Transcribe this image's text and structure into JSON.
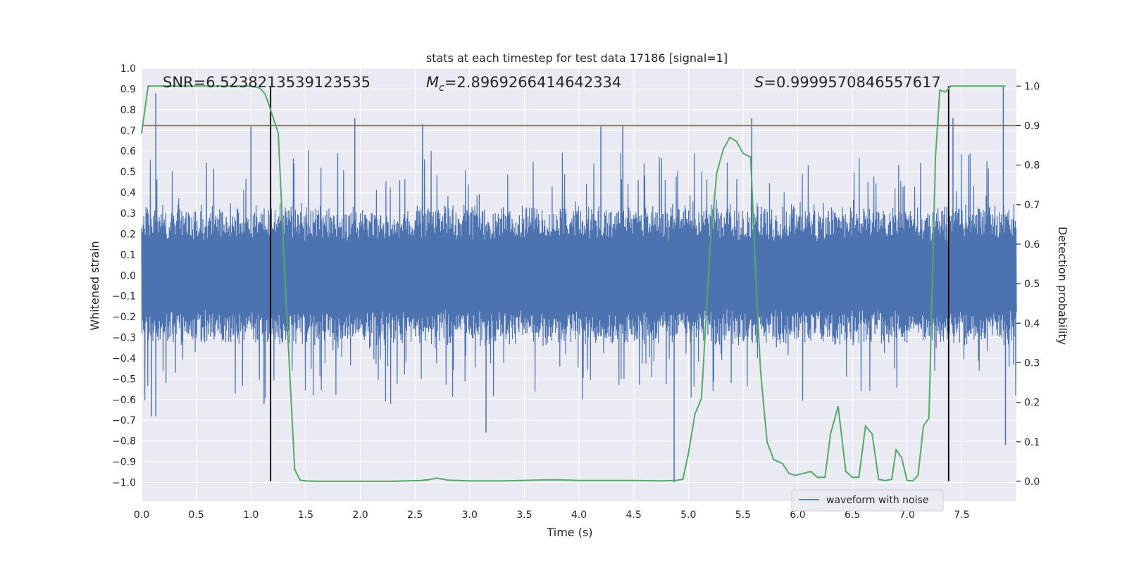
{
  "chart_data": {
    "type": "line",
    "title": "stats at each timestep for test data 17186 [signal=1]",
    "xlabel": "Time (s)",
    "ylabel_left": "Whitened strain",
    "ylabel_right": "Detection probability",
    "xlim": [
      0.0,
      8.0
    ],
    "ylim_left": [
      -1.09,
      1.0
    ],
    "ylim_right": [
      -0.05,
      1.045
    ],
    "x_ticks": [
      0.0,
      0.5,
      1.0,
      1.5,
      2.0,
      2.5,
      3.0,
      3.5,
      4.0,
      4.5,
      5.0,
      5.5,
      6.0,
      6.5,
      7.0,
      7.5
    ],
    "x_tick_labels": [
      "0.0",
      "0.5",
      "1.0",
      "1.5",
      "2.0",
      "2.5",
      "3.0",
      "3.5",
      "4.0",
      "4.5",
      "5.0",
      "5.5",
      "6.0",
      "6.5",
      "7.0",
      "7.5"
    ],
    "y_left_ticks": [
      1.0,
      0.9,
      0.8,
      0.7,
      0.6,
      0.5,
      0.4,
      0.3,
      0.2,
      0.1,
      0.0,
      -0.1,
      -0.2,
      -0.3,
      -0.4,
      -0.5,
      -0.6,
      -0.7,
      -0.8,
      -0.9,
      -1.0
    ],
    "y_left_tick_labels": [
      "1.0",
      "0.9",
      "0.8",
      "0.7",
      "0.6",
      "0.5",
      "0.4",
      "0.3",
      "0.2",
      "0.1",
      "0.0",
      "−0.1",
      "−0.2",
      "−0.3",
      "−0.4",
      "−0.5",
      "−0.6",
      "−0.7",
      "−0.8",
      "−0.9",
      "−1.0"
    ],
    "y_right_ticks": [
      1.0,
      0.9,
      0.8,
      0.7,
      0.6,
      0.5,
      0.4,
      0.3,
      0.2,
      0.1,
      0.0
    ],
    "y_right_tick_labels": [
      "1.0",
      "0.9",
      "0.8",
      "0.7",
      "0.6",
      "0.5",
      "0.4",
      "0.3",
      "0.2",
      "0.1",
      "0.0"
    ],
    "annotations": {
      "snr": "SNR=6.5238213539123535",
      "mc_symbol": "M",
      "mc_sub": "c",
      "mc_value": "=2.8969266414642334",
      "s_symbol": "S",
      "s_value": "=0.9999570846557617"
    },
    "threshold": {
      "axis": "right",
      "value": 0.9,
      "color": "#c44e52"
    },
    "vertical_lines": [
      {
        "x": 1.18,
        "y_from": 0.0,
        "y_to": 1.0,
        "axis": "right",
        "color": "#000000"
      },
      {
        "x": 7.38,
        "y_from": 0.0,
        "y_to": 1.0,
        "axis": "right",
        "color": "#000000"
      }
    ],
    "series": [
      {
        "name": "waveform with noise",
        "axis": "left",
        "color": "#4c72b0",
        "style": "noise",
        "envelope_typical": 0.33,
        "peaks": [
          {
            "x": 0.09,
            "y": -0.68
          },
          {
            "x": 0.13,
            "y": 0.88
          },
          {
            "x": 0.13,
            "y": -0.68
          },
          {
            "x": 1.0,
            "y": 0.72
          },
          {
            "x": 1.12,
            "y": -0.62
          },
          {
            "x": 1.95,
            "y": 0.76
          },
          {
            "x": 2.57,
            "y": 0.73
          },
          {
            "x": 3.15,
            "y": -0.76
          },
          {
            "x": 4.2,
            "y": 0.72
          },
          {
            "x": 4.4,
            "y": 0.72
          },
          {
            "x": 4.87,
            "y": -1.0
          },
          {
            "x": 5.58,
            "y": 0.76
          },
          {
            "x": 7.42,
            "y": 0.76
          },
          {
            "x": 7.88,
            "y": 0.91
          },
          {
            "x": 7.9,
            "y": -0.82
          }
        ]
      },
      {
        "name": "detection probability",
        "axis": "right",
        "color": "#55a868",
        "x": [
          0.0,
          0.06,
          0.12,
          0.25,
          0.5,
          0.8,
          1.0,
          1.08,
          1.13,
          1.18,
          1.25,
          1.3,
          1.35,
          1.4,
          1.45,
          1.5,
          1.6,
          1.8,
          2.0,
          2.3,
          2.55,
          2.62,
          2.7,
          2.8,
          3.0,
          3.3,
          3.6,
          3.8,
          4.0,
          4.3,
          4.5,
          4.75,
          4.88,
          4.95,
          5.0,
          5.06,
          5.12,
          5.2,
          5.26,
          5.32,
          5.38,
          5.44,
          5.5,
          5.57,
          5.62,
          5.66,
          5.72,
          5.78,
          5.86,
          5.92,
          5.98,
          6.05,
          6.12,
          6.18,
          6.25,
          6.3,
          6.37,
          6.44,
          6.5,
          6.56,
          6.62,
          6.68,
          6.74,
          6.8,
          6.86,
          6.9,
          6.95,
          7.0,
          7.05,
          7.1,
          7.15,
          7.2,
          7.26,
          7.3,
          7.35,
          7.4,
          7.45,
          7.5,
          7.55,
          7.6,
          7.68,
          7.8,
          7.9
        ],
        "y": [
          0.88,
          1.0,
          1.0,
          1.0,
          1.0,
          1.0,
          1.0,
          0.995,
          0.98,
          0.94,
          0.88,
          0.58,
          0.3,
          0.03,
          0.003,
          0.001,
          0.0,
          0.0,
          0.0,
          0.0,
          0.002,
          0.004,
          0.008,
          0.003,
          0.001,
          0.001,
          0.003,
          0.004,
          0.002,
          0.002,
          0.002,
          0.001,
          0.002,
          0.005,
          0.07,
          0.17,
          0.21,
          0.6,
          0.78,
          0.84,
          0.87,
          0.86,
          0.83,
          0.82,
          0.5,
          0.28,
          0.1,
          0.055,
          0.045,
          0.02,
          0.015,
          0.02,
          0.025,
          0.01,
          0.01,
          0.12,
          0.19,
          0.025,
          0.01,
          0.01,
          0.14,
          0.12,
          0.005,
          0.002,
          0.005,
          0.08,
          0.06,
          0.002,
          0.001,
          0.015,
          0.14,
          0.16,
          0.82,
          0.99,
          0.985,
          1.0,
          1.0,
          1.0,
          1.0,
          1.0,
          1.0,
          1.0,
          1.0
        ]
      }
    ],
    "legend": {
      "entries": [
        "waveform with noise"
      ],
      "placement": "bottom-right"
    },
    "grid": true,
    "background": "#eaeaf2"
  }
}
